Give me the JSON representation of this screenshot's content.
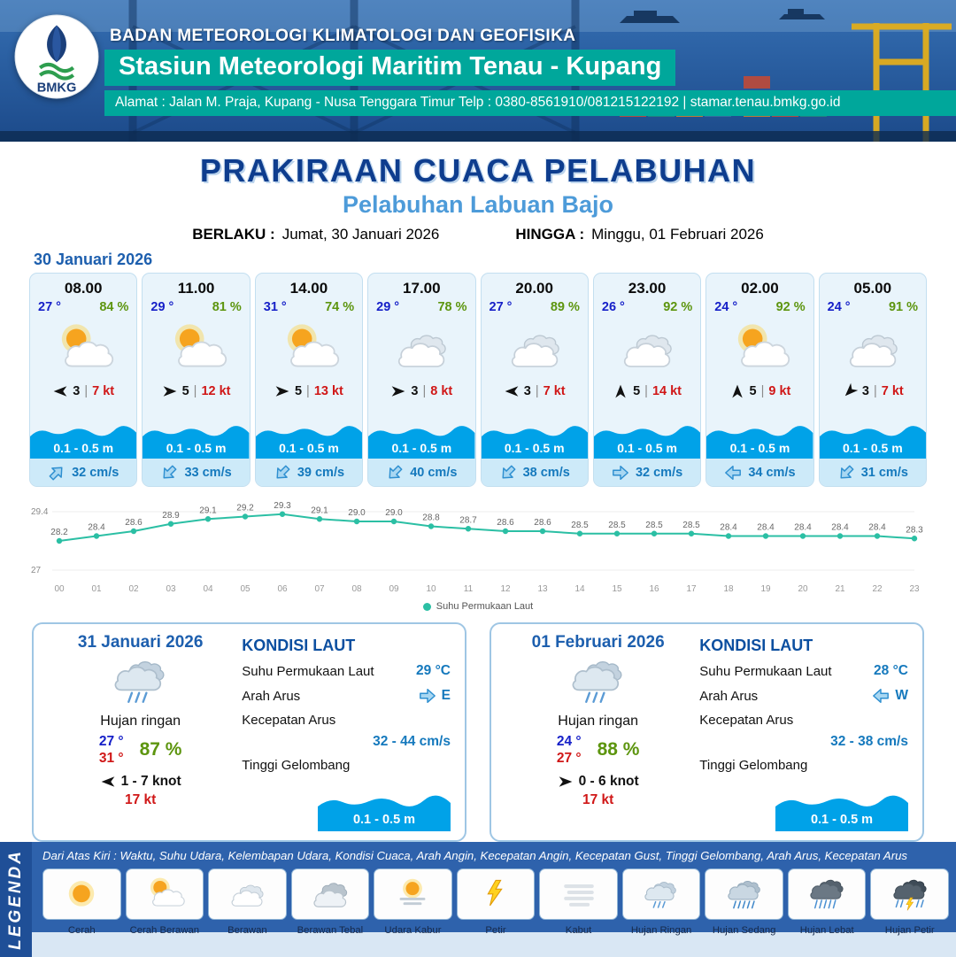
{
  "header": {
    "logo_text": "BMKG",
    "agency": "BADAN METEOROLOGI KLIMATOLOGI DAN GEOFISIKA",
    "station": "Stasiun Meteorologi Maritim Tenau - Kupang",
    "address": "Alamat : Jalan M. Praja, Kupang - Nusa Tenggara Timur Telp : 0380-8561910/081215122192  | stamar.tenau.bmkg.go.id"
  },
  "title": {
    "main": "PRAKIRAAN CUACA PELABUHAN",
    "port": "Pelabuhan Labuan Bajo",
    "valid_label": "BERLAKU :",
    "valid_value": "Jumat, 30 Januari 2026",
    "until_label": "HINGGA :",
    "until_value": "Minggu, 01 Februari 2026"
  },
  "forecast_date": "30 Januari 2026",
  "cards": [
    {
      "time": "08.00",
      "temp": "27 °",
      "humidity": "84 %",
      "icon": "cerah-berawan",
      "wind_from": "W",
      "wind": "3",
      "gust": "7 kt",
      "wave": "0.1 - 0.5 m",
      "current_from": "NE",
      "current": "32 cm/s"
    },
    {
      "time": "11.00",
      "temp": "29 °",
      "humidity": "81 %",
      "icon": "cerah-berawan",
      "wind_from": "E",
      "wind": "5",
      "gust": "12 kt",
      "wave": "0.1 - 0.5 m",
      "current_from": "SW",
      "current": "33 cm/s"
    },
    {
      "time": "14.00",
      "temp": "31 °",
      "humidity": "74 %",
      "icon": "cerah-berawan",
      "wind_from": "E",
      "wind": "5",
      "gust": "13 kt",
      "wave": "0.1 - 0.5 m",
      "current_from": "SW",
      "current": "39 cm/s"
    },
    {
      "time": "17.00",
      "temp": "29 °",
      "humidity": "78 %",
      "icon": "berawan",
      "wind_from": "E",
      "wind": "3",
      "gust": "8 kt",
      "wave": "0.1 - 0.5 m",
      "current_from": "SW",
      "current": "40 cm/s"
    },
    {
      "time": "20.00",
      "temp": "27 °",
      "humidity": "89 %",
      "icon": "berawan",
      "wind_from": "W",
      "wind": "3",
      "gust": "7 kt",
      "wave": "0.1 - 0.5 m",
      "current_from": "SW",
      "current": "38 cm/s"
    },
    {
      "time": "23.00",
      "temp": "26 °",
      "humidity": "92 %",
      "icon": "berawan",
      "wind_from": "N",
      "wind": "5",
      "gust": "14 kt",
      "wave": "0.1 - 0.5 m",
      "current_from": "E",
      "current": "32 cm/s"
    },
    {
      "time": "02.00",
      "temp": "24 °",
      "humidity": "92 %",
      "icon": "cerah-berawan",
      "wind_from": "N",
      "wind": "5",
      "gust": "9 kt",
      "wave": "0.1 - 0.5 m",
      "current_from": "W",
      "current": "34 cm/s"
    },
    {
      "time": "05.00",
      "temp": "24 °",
      "humidity": "91 %",
      "icon": "berawan",
      "wind_from": "SW",
      "wind": "3",
      "gust": "7 kt",
      "wave": "0.1 - 0.5 m",
      "current_from": "SW",
      "current": "31 cm/s"
    }
  ],
  "chart_data": {
    "type": "line",
    "title": "",
    "x": [
      "00",
      "01",
      "02",
      "03",
      "04",
      "05",
      "06",
      "07",
      "08",
      "09",
      "10",
      "11",
      "12",
      "13",
      "14",
      "15",
      "16",
      "17",
      "18",
      "19",
      "20",
      "21",
      "22",
      "23"
    ],
    "values": [
      28.2,
      28.4,
      28.6,
      28.9,
      29.1,
      29.2,
      29.3,
      29.1,
      29.0,
      29.0,
      28.8,
      28.7,
      28.6,
      28.6,
      28.5,
      28.5,
      28.5,
      28.5,
      28.4,
      28.4,
      28.4,
      28.4,
      28.4,
      28.3
    ],
    "ylim": [
      27,
      29.4
    ],
    "series_name": "Suhu Permukaan Laut",
    "line_color": "#2bbfa4",
    "legend_position": "bottom",
    "grid": false
  },
  "day_cards": [
    {
      "date": "31 Januari 2026",
      "icon": "hujan-ringan",
      "condition": "Hujan ringan",
      "temp_min": "27 °",
      "temp_max": "31 °",
      "humidity": "87 %",
      "wind_from": "W",
      "wind_range": "1 - 7 knot",
      "gust": "17 kt",
      "sea": {
        "title": "KONDISI LAUT",
        "sst_label": "Suhu Permukaan Laut",
        "sst": "29 °C",
        "dir_label": "Arah Arus",
        "dir_from": "E",
        "dir": "E",
        "speed_label": "Kecepatan Arus",
        "speed": "32 - 44 cm/s",
        "wave_label": "Tinggi Gelombang",
        "wave": "0.1 - 0.5 m"
      }
    },
    {
      "date": "01 Februari 2026",
      "icon": "hujan-ringan",
      "condition": "Hujan ringan",
      "temp_min": "24 °",
      "temp_max": "27 °",
      "humidity": "88 %",
      "wind_from": "E",
      "wind_range": "0 - 6 knot",
      "gust": "17 kt",
      "sea": {
        "title": "KONDISI LAUT",
        "sst_label": "Suhu Permukaan Laut",
        "sst": "28 °C",
        "dir_label": "Arah Arus",
        "dir_from": "W",
        "dir": "W",
        "speed_label": "Kecepatan Arus",
        "speed": "32 - 38 cm/s",
        "wave_label": "Tinggi Gelombang",
        "wave": "0.1 - 0.5 m"
      }
    }
  ],
  "legend": {
    "title": "LEGENDA",
    "note": "Dari Atas Kiri : Waktu, Suhu Udara, Kelembapan Udara, Kondisi Cuaca, Arah Angin, Kecepatan Angin, Kecepatan Gust, Tinggi Gelombang, Arah Arus, Kecepatan Arus",
    "items": [
      {
        "label": "Cerah",
        "icon": "cerah"
      },
      {
        "label": "Cerah Berawan",
        "icon": "cerah-berawan"
      },
      {
        "label": "Berawan",
        "icon": "berawan"
      },
      {
        "label": "Berawan Tebal",
        "icon": "berawan-tebal"
      },
      {
        "label": "Udara Kabur",
        "icon": "udara-kabur"
      },
      {
        "label": "Petir",
        "icon": "petir"
      },
      {
        "label": "Kabut",
        "icon": "kabut"
      },
      {
        "label": "Hujan Ringan",
        "icon": "hujan-ringan"
      },
      {
        "label": "Hujan Sedang",
        "icon": "hujan-sedang"
      },
      {
        "label": "Hujan Lebat",
        "icon": "hujan-lebat"
      },
      {
        "label": "Hujan Petir",
        "icon": "hujan-petir"
      }
    ]
  }
}
